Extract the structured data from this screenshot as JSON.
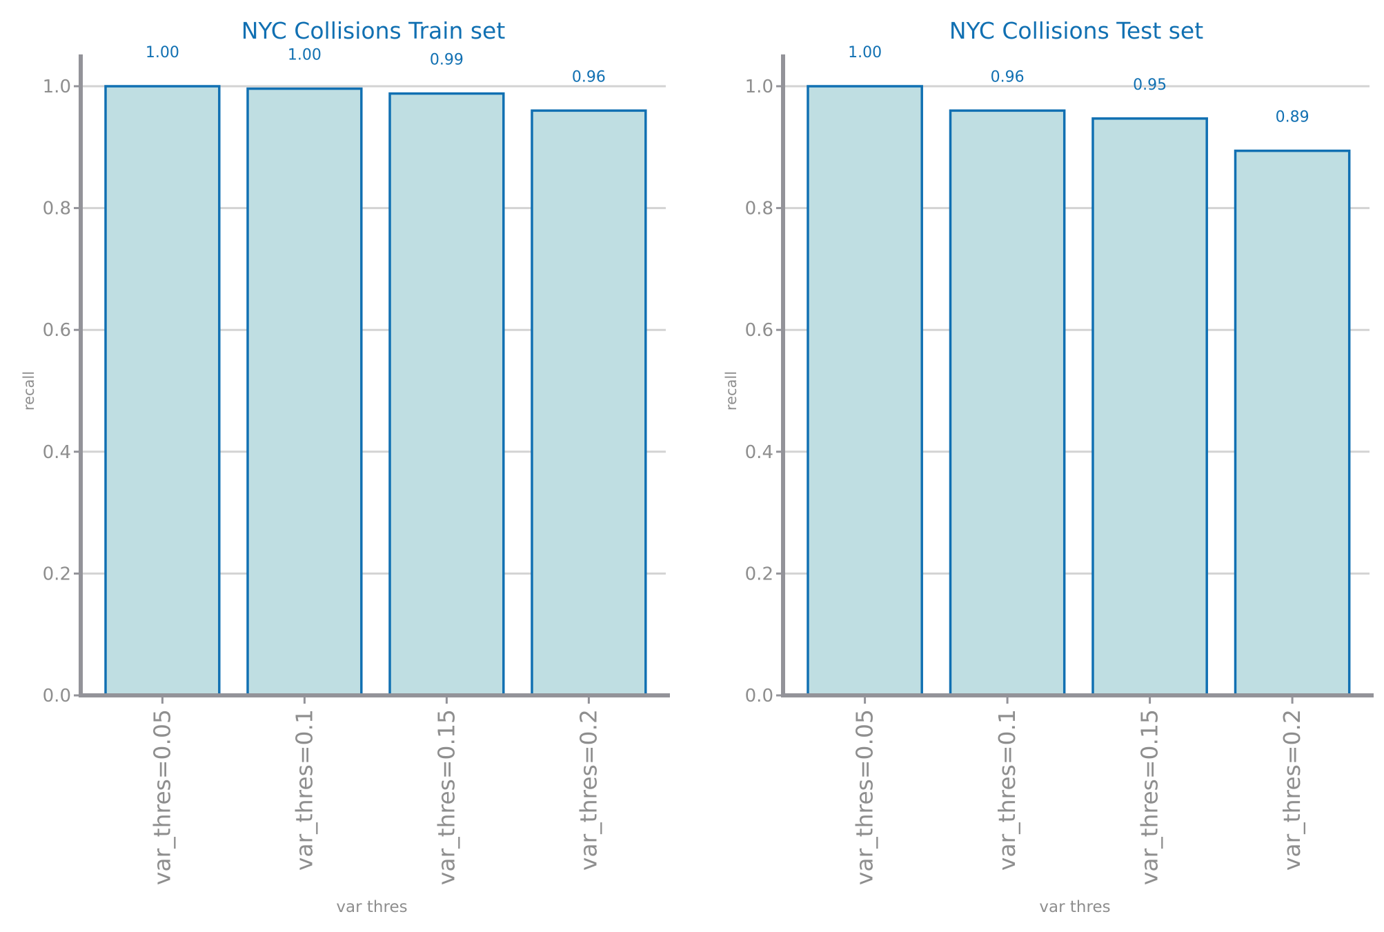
{
  "colors": {
    "bar_fill": "#bfdee2",
    "bar_edge": "#1170b2",
    "title": "#1170b2",
    "value_label": "#1170b2",
    "axis": "#939399",
    "grid": "#d3d3d3",
    "tick_text": "#8e8e8e"
  },
  "chart_data": [
    {
      "type": "bar",
      "title": "NYC Collisions Train set",
      "xlabel": "var thres",
      "ylabel": "recall",
      "categories": [
        "var_thres=0.05",
        "var_thres=0.1",
        "var_thres=0.15",
        "var_thres=0.2"
      ],
      "values": [
        1.0,
        0.996,
        0.988,
        0.96
      ],
      "value_labels": [
        "1.00",
        "1.00",
        "0.99",
        "0.96"
      ],
      "ylim": [
        0,
        1.05
      ],
      "yticks": [
        "0.0",
        "0.2",
        "0.4",
        "0.6",
        "0.8",
        "1.0"
      ],
      "grid": "horizontal"
    },
    {
      "type": "bar",
      "title": "NYC Collisions Test set",
      "xlabel": "var thres",
      "ylabel": "recall",
      "categories": [
        "var_thres=0.05",
        "var_thres=0.1",
        "var_thres=0.15",
        "var_thres=0.2"
      ],
      "values": [
        1.0,
        0.96,
        0.947,
        0.894
      ],
      "value_labels": [
        "1.00",
        "0.96",
        "0.95",
        "0.89"
      ],
      "ylim": [
        0,
        1.05
      ],
      "yticks": [
        "0.0",
        "0.2",
        "0.4",
        "0.6",
        "0.8",
        "1.0"
      ],
      "grid": "horizontal"
    }
  ]
}
